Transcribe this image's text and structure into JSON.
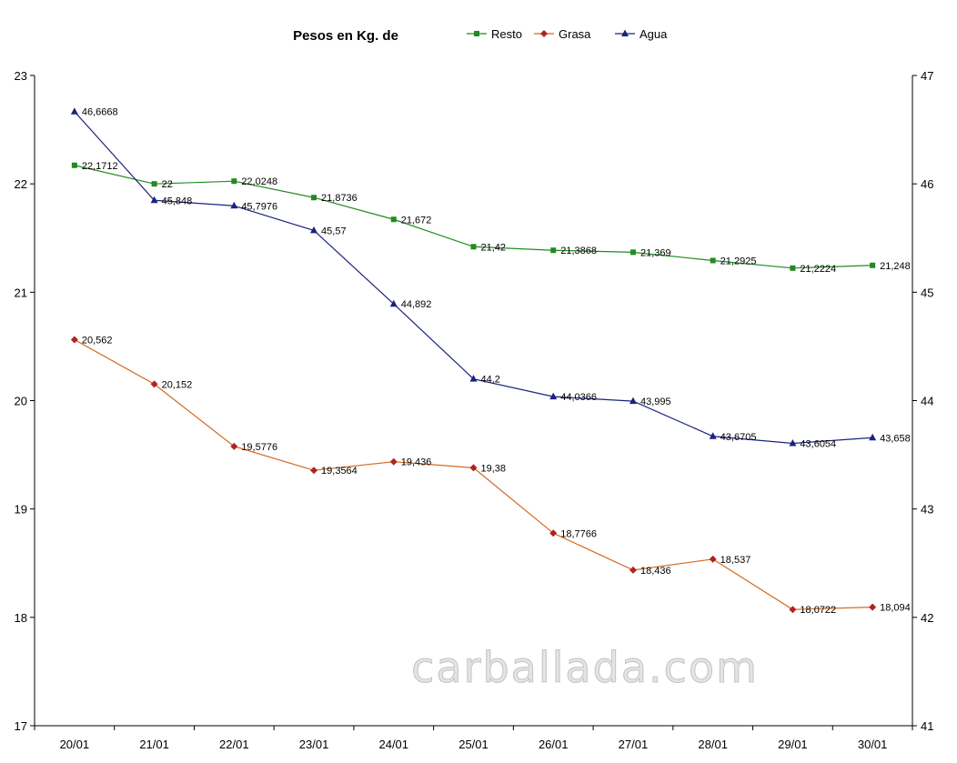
{
  "chart_data": {
    "type": "line",
    "title": "Pesos en Kg. de",
    "categories": [
      "20/01",
      "21/01",
      "22/01",
      "23/01",
      "24/01",
      "25/01",
      "26/01",
      "27/01",
      "28/01",
      "29/01",
      "30/01"
    ],
    "y_left": {
      "range": [
        17,
        23
      ],
      "ticks": [
        17,
        18,
        19,
        20,
        21,
        22,
        23
      ]
    },
    "y_right": {
      "range": [
        41,
        47
      ],
      "ticks": [
        41,
        42,
        43,
        44,
        45,
        46,
        47
      ]
    },
    "grid": false,
    "legend_position": "top",
    "series": [
      {
        "name": "Resto",
        "axis": "left",
        "color": "#228B22",
        "marker": "square",
        "values": [
          22.1712,
          22,
          22.0248,
          21.8736,
          21.672,
          21.42,
          21.3868,
          21.369,
          21.2925,
          21.2224,
          21.248
        ],
        "labels": [
          "22,1712",
          "22",
          "22,0248",
          "21,8736",
          "21,672",
          "21,42",
          "21,3868",
          "21,369",
          "21,2925",
          "21,2224",
          "21,248"
        ]
      },
      {
        "name": "Grasa",
        "axis": "left",
        "color": "#D2691E",
        "marker_color": "#B22222",
        "marker": "diamond",
        "values": [
          20.562,
          20.152,
          19.5776,
          19.3564,
          19.436,
          19.38,
          18.7766,
          18.436,
          18.537,
          18.0722,
          18.094
        ],
        "labels": [
          "20,562",
          "20,152",
          "19,5776",
          "19,3564",
          "19,436",
          "19,38",
          "18,7766",
          "18,436",
          "18,537",
          "18,0722",
          "18,094"
        ]
      },
      {
        "name": "Agua",
        "axis": "right",
        "color": "#1A237E",
        "marker": "triangle",
        "values": [
          46.6668,
          45.848,
          45.7976,
          45.57,
          44.892,
          44.2,
          44.0366,
          43.995,
          43.6705,
          43.6054,
          43.658
        ],
        "labels": [
          "46,6668",
          "45,848",
          "45,7976",
          "45,57",
          "44,892",
          "44,2",
          "44,0366",
          "43,995",
          "43,6705",
          "43,6054",
          "43,658"
        ]
      }
    ],
    "watermark": "carballada.com"
  }
}
